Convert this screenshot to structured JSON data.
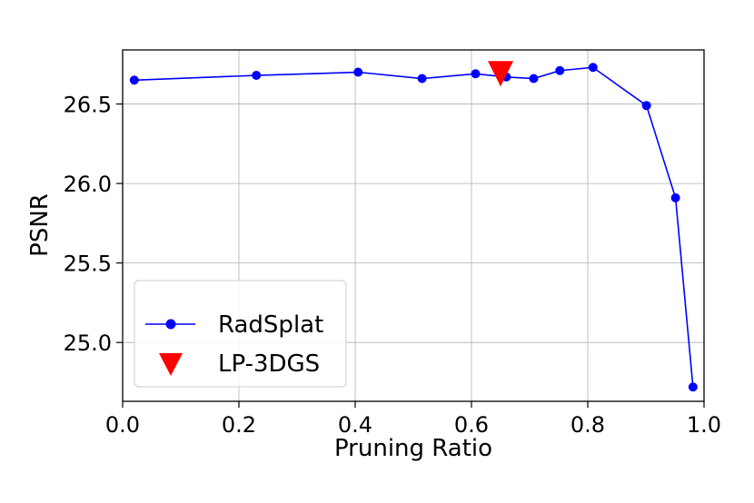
{
  "chart_data": {
    "type": "line",
    "xlabel": "Pruning Ratio",
    "ylabel": "PSNR",
    "xlim": [
      0.0,
      1.0
    ],
    "ylim": [
      24.63,
      26.84
    ],
    "xticks": [
      "0.0",
      "0.2",
      "0.4",
      "0.6",
      "0.8",
      "1.0"
    ],
    "yticks": [
      "25.0",
      "25.5",
      "26.0",
      "26.5"
    ],
    "grid": true,
    "legend_position": "lower-left",
    "series": [
      {
        "name": "RadSplat",
        "color": "#0000ff",
        "marker": "circle",
        "x": [
          0.02,
          0.23,
          0.405,
          0.515,
          0.607,
          0.66,
          0.707,
          0.752,
          0.809,
          0.901,
          0.951,
          0.981
        ],
        "y": [
          26.65,
          26.68,
          26.7,
          26.66,
          26.69,
          26.67,
          26.66,
          26.71,
          26.73,
          26.49,
          25.91,
          24.72
        ]
      },
      {
        "name": "LP-3DGS",
        "color": "#ff0000",
        "marker": "triangle-down",
        "x": [
          0.65
        ],
        "y": [
          26.69
        ]
      }
    ]
  }
}
